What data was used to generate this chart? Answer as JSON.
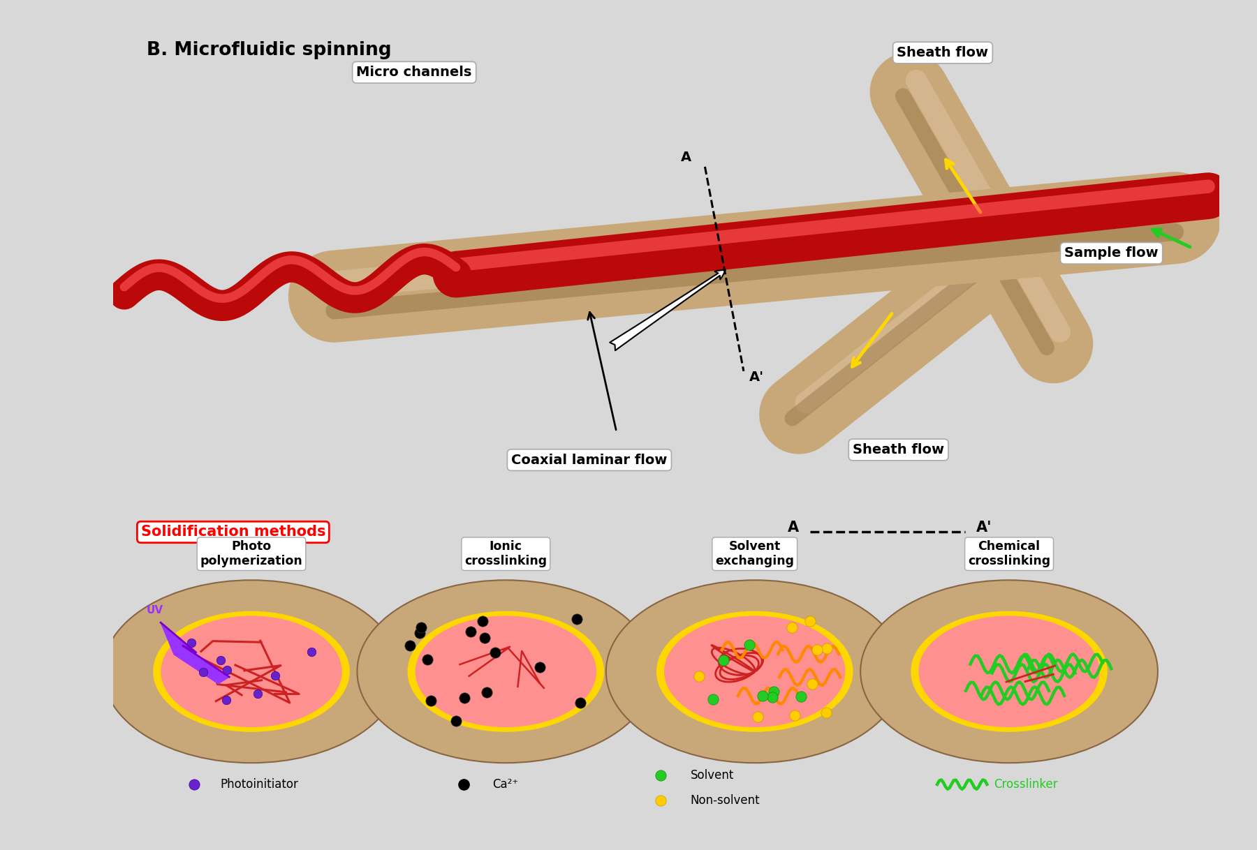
{
  "title": "B. Microfluidic spinning",
  "bg_color": "#d8d8d8",
  "panel_bg": "#f0f0f0",
  "tube_color": "#c8a878",
  "red_color": "#dd1010",
  "pink_color": "#ff9090",
  "yellow_color": "#ffd700",
  "green_color": "#22cc22",
  "orange_color": "#ff8c00",
  "purple_color": "#8844cc",
  "black_color": "#111111",
  "labels": {
    "title": "B. Microfluidic spinning",
    "micro_channels": "Micro channels",
    "sheath_flow_top": "Sheath flow",
    "sample_flow": "Sample flow",
    "sheath_flow_bottom": "Sheath flow",
    "coaxial": "Coaxial laminar flow",
    "solidification": "Solidification methods",
    "photo_poly": "Photo\npolymerization",
    "ionic": "Ionic\ncrosslinking",
    "solvent": "Solvent\nexchanging",
    "chemical": "Chemical\ncrosslinking",
    "photoinitiator": "Photoinitiator",
    "ca2": "Ca²⁺",
    "solvent_legend": "Solvent",
    "nonsolvent": "Non-solvent",
    "crosslinker": "Crosslinker",
    "uv": "UV"
  }
}
